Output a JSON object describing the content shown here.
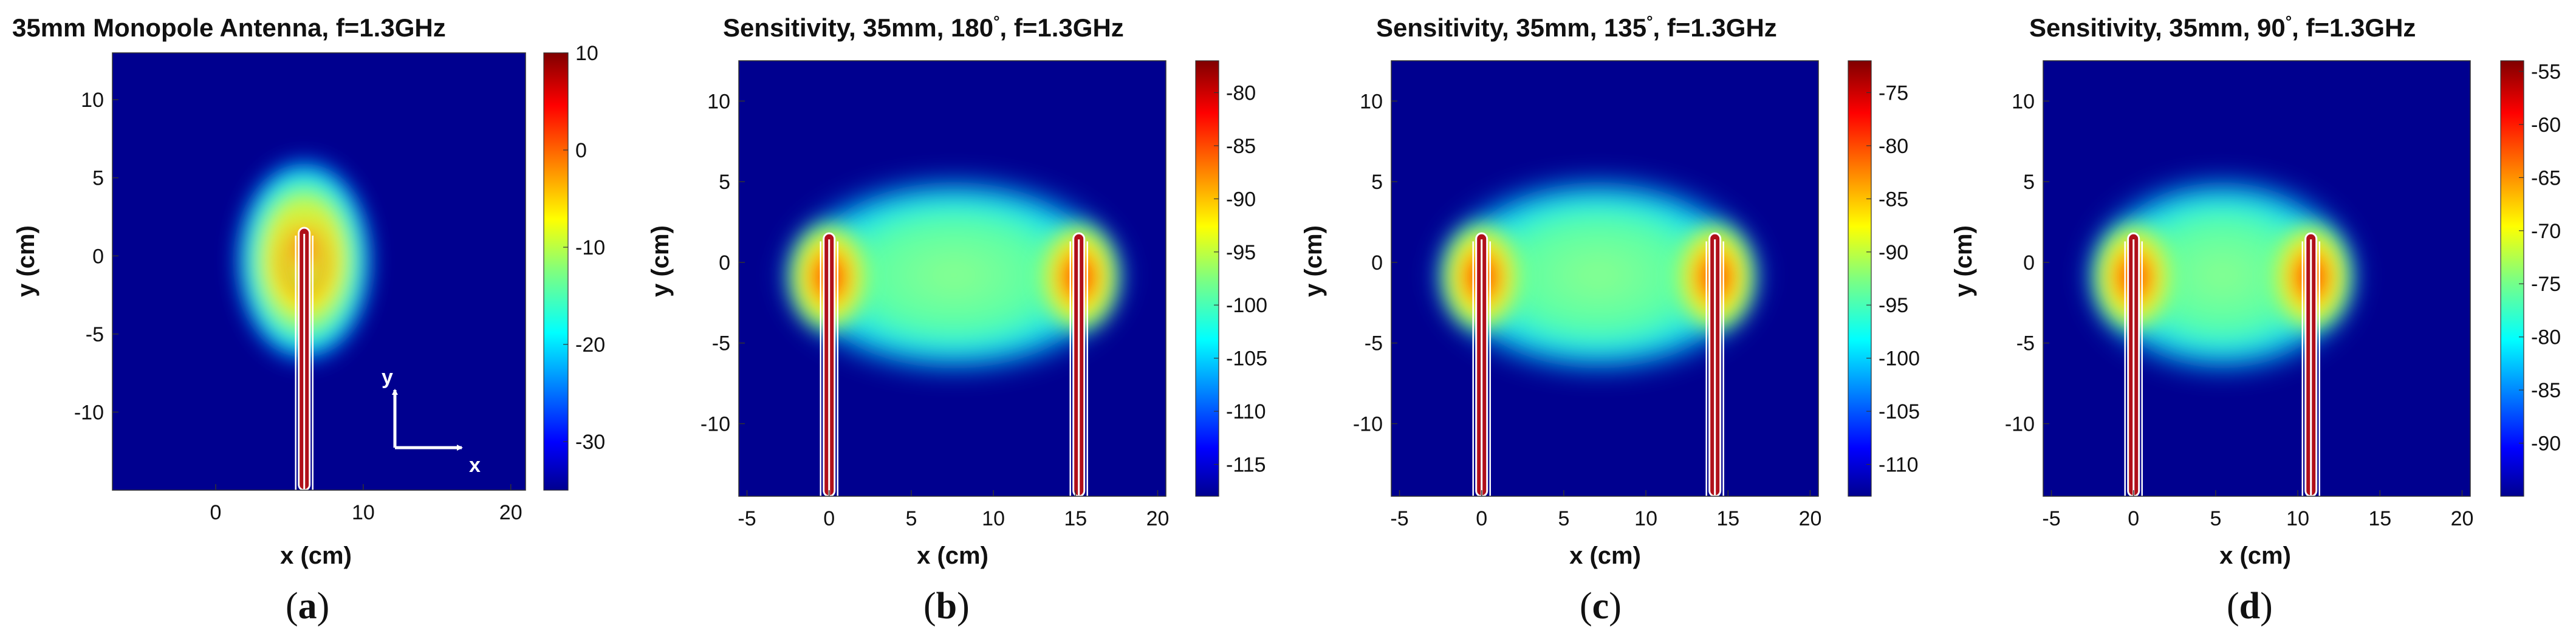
{
  "colors": {
    "background": "#00008F",
    "outline": "#ffffff",
    "element": "#B0101A"
  },
  "chart_data": [
    {
      "type": "heatmap",
      "panel": "a",
      "caption": "a",
      "title": "35mm Monopole Antenna, f=1.3GHz",
      "title_parts": [
        "35mm Monopole Antenna, f=1.3GHz"
      ],
      "xlabel": "x (cm)",
      "ylabel": "y (cm)",
      "xlim": [
        -7,
        21
      ],
      "ylim": [
        -15,
        13
      ],
      "xticks": [
        0,
        10,
        20
      ],
      "yticks": [
        10,
        5,
        0,
        -5,
        -10
      ],
      "colorbar": {
        "min": -35,
        "max": 10,
        "ticks": [
          10,
          0,
          -10,
          -20,
          -30
        ]
      },
      "antennas_x": [
        6
      ],
      "antenna_top_y": 1.8,
      "field_span": [
        6,
        6
      ],
      "field_reach": 6.0,
      "shape": "single",
      "axes_arrows": {
        "x_label": "x",
        "y_label": "y"
      }
    },
    {
      "type": "heatmap",
      "panel": "b",
      "caption": "b",
      "title": "Sensitivity, 35mm, 180°, f=1.3GHz",
      "title_parts": [
        "Sensitivity, 35mm, 180",
        "°",
        ", f=1.3GHz"
      ],
      "xlabel": "x (cm)",
      "ylabel": "y (cm)",
      "xlim": [
        -5.5,
        20.5
      ],
      "ylim": [
        -14.5,
        12.5
      ],
      "xticks": [
        -5,
        0,
        5,
        10,
        15,
        20
      ],
      "yticks": [
        10,
        5,
        0,
        -5,
        -10
      ],
      "colorbar": {
        "min": -118,
        "max": -77,
        "ticks": [
          -80,
          -85,
          -90,
          -95,
          -100,
          -105,
          -110,
          -115
        ]
      },
      "antennas_x": [
        0,
        15.2
      ],
      "antenna_top_y": 1.8,
      "field_span": [
        -3,
        18.2
      ],
      "shape": "pair"
    },
    {
      "type": "heatmap",
      "panel": "c",
      "caption": "c",
      "title": "Sensitivity, 35mm, 135°, f=1.3GHz",
      "title_parts": [
        "Sensitivity, 35mm, 135",
        "°",
        ", f=1.3GHz"
      ],
      "xlabel": "x (cm)",
      "ylabel": "y (cm)",
      "xlim": [
        -5.5,
        20.5
      ],
      "ylim": [
        -14.5,
        12.5
      ],
      "xticks": [
        -5,
        0,
        5,
        10,
        15,
        20
      ],
      "yticks": [
        10,
        5,
        0,
        -5,
        -10
      ],
      "colorbar": {
        "min": -113,
        "max": -72,
        "ticks": [
          -75,
          -80,
          -85,
          -90,
          -95,
          -100,
          -105,
          -110
        ]
      },
      "antennas_x": [
        0,
        14.2
      ],
      "antenna_top_y": 1.8,
      "field_span": [
        -3,
        17.2
      ],
      "shape": "pair"
    },
    {
      "type": "heatmap",
      "panel": "d",
      "caption": "d",
      "title": "Sensitivity, 35mm, 90°, f=1.3GHz",
      "title_parts": [
        "Sensitivity, 35mm, 90",
        "°",
        ", f=1.3GHz"
      ],
      "xlabel": "x (cm)",
      "ylabel": "y (cm)",
      "xlim": [
        -5.5,
        20.5
      ],
      "ylim": [
        -14.5,
        12.5
      ],
      "xticks": [
        -5,
        0,
        5,
        10,
        15,
        20
      ],
      "yticks": [
        10,
        5,
        0,
        -5,
        -10
      ],
      "colorbar": {
        "min": -95,
        "max": -54,
        "ticks": [
          -55,
          -60,
          -65,
          -70,
          -75,
          -80,
          -85,
          -90
        ]
      },
      "antennas_x": [
        0,
        10.8
      ],
      "antenna_top_y": 1.8,
      "field_span": [
        -3,
        13.8
      ],
      "shape": "pair"
    }
  ]
}
